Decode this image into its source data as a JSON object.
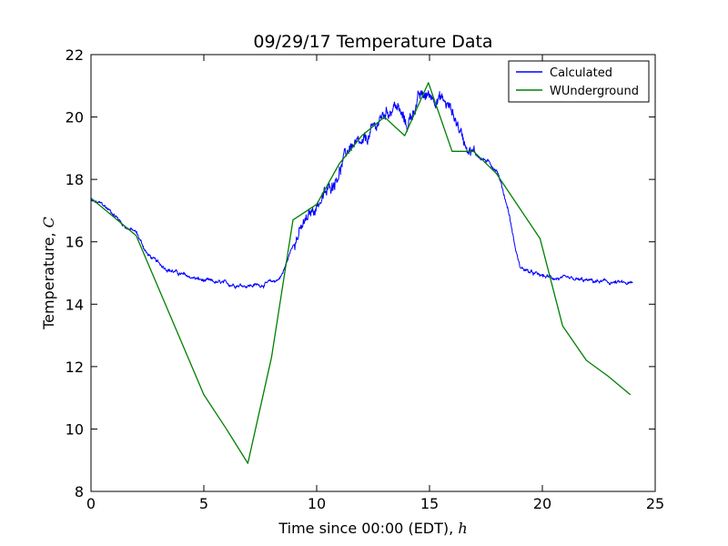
{
  "chart_data": {
    "type": "line",
    "title": "09/29/17 Temperature Data",
    "xlabel": "Time since 00:00 (EDT), ",
    "xlabel_var": "h",
    "ylabel": "Temperature, ",
    "ylabel_var": "C",
    "xlim": [
      0,
      25
    ],
    "ylim": [
      8,
      22
    ],
    "xticks": [
      "0",
      "5",
      "10",
      "15",
      "20",
      "25"
    ],
    "yticks": [
      "8",
      "10",
      "12",
      "14",
      "16",
      "18",
      "20",
      "22"
    ],
    "grid": false,
    "legend_position": "top-right",
    "series": [
      {
        "name": "Calculated",
        "color": "#0000ff",
        "x": [
          0.0,
          0.5,
          1.0,
          1.5,
          2.0,
          2.5,
          3.0,
          3.5,
          4.0,
          5.0,
          6.0,
          7.0,
          7.5,
          8.0,
          8.3,
          8.5,
          9.0,
          9.5,
          10.0,
          10.5,
          11.0,
          11.5,
          12.0,
          12.5,
          13.0,
          13.5,
          14.0,
          14.5,
          15.0,
          15.5,
          16.0,
          16.5,
          17.0,
          17.5,
          18.0,
          18.5,
          18.8,
          19.0,
          19.5,
          20.0,
          21.0,
          22.0,
          23.0,
          24.0
        ],
        "y": [
          17.3,
          17.2,
          16.9,
          16.5,
          16.3,
          15.6,
          15.3,
          15.1,
          14.95,
          14.75,
          14.65,
          14.6,
          14.62,
          14.7,
          14.8,
          15.0,
          16.0,
          16.6,
          17.2,
          17.6,
          18.3,
          19.1,
          19.0,
          19.6,
          20.1,
          20.4,
          19.7,
          20.6,
          20.7,
          20.6,
          20.2,
          19.3,
          18.8,
          18.6,
          18.3,
          17.0,
          15.8,
          15.2,
          15.0,
          14.9,
          14.8,
          14.75,
          14.7,
          14.65
        ]
      },
      {
        "name": "WUnderground",
        "color": "#008000",
        "x": [
          0.0,
          1.0,
          2.0,
          3.0,
          4.0,
          5.0,
          6.0,
          6.95,
          8.0,
          8.95,
          10.0,
          11.0,
          12.0,
          13.0,
          13.9,
          14.95,
          16.0,
          16.95,
          17.95,
          19.9,
          20.9,
          21.95,
          22.9,
          23.9
        ],
        "y": [
          17.4,
          16.8,
          16.2,
          14.5,
          12.8,
          11.1,
          10.0,
          8.9,
          12.3,
          16.7,
          17.2,
          18.5,
          19.4,
          20.0,
          19.4,
          21.1,
          18.9,
          18.9,
          18.2,
          16.1,
          13.3,
          12.2,
          11.7,
          11.1
        ]
      }
    ]
  }
}
